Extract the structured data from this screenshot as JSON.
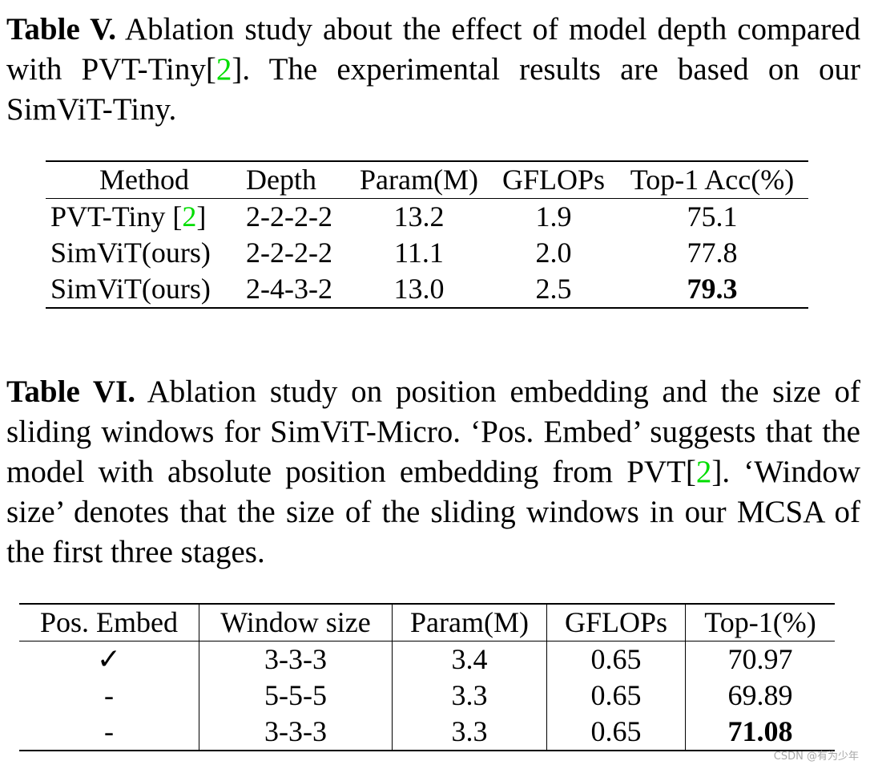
{
  "table5": {
    "caption": {
      "label": "Table V.",
      "text_1": " Ablation study about the effect of model depth compared with PVT-Tiny[",
      "ref": "2",
      "text_2": "]. The experimental results are based on our SimViT-Tiny."
    },
    "headers": [
      "Method",
      "Depth",
      "Param(M)",
      "GFLOPs",
      "Top-1 Acc(%)"
    ],
    "rows": [
      {
        "method": "PVT-Tiny [",
        "ref": "2",
        "method_end": "]",
        "depth": "2-2-2-2",
        "param": "13.2",
        "gflops": "1.9",
        "top1": "75.1"
      },
      {
        "method": "SimViT(ours)",
        "depth": "2-2-2-2",
        "param": "11.1",
        "gflops": "2.0",
        "top1": "77.8"
      },
      {
        "method": "SimViT(ours)",
        "depth": "2-4-3-2",
        "param": "13.0",
        "gflops": "2.5",
        "top1": "79.3"
      }
    ]
  },
  "table6": {
    "caption": {
      "label": "Table VI.",
      "text_1": " Ablation study on position embedding and the size of sliding windows for SimViT-Micro. ‘Pos. Embed’ suggests that the model with absolute position embedding from PVT[",
      "ref": "2",
      "text_2": "]. ‘Window size’ denotes that the size of the sliding windows in our MCSA of the first three stages."
    },
    "headers": [
      "Pos. Embed",
      "Window size",
      "Param(M)",
      "GFLOPs",
      "Top-1(%)"
    ],
    "rows": [
      {
        "pos": "✓",
        "window": "3-3-3",
        "param": "3.4",
        "gflops": "0.65",
        "top1": "70.97"
      },
      {
        "pos": "-",
        "window": "5-5-5",
        "param": "3.3",
        "gflops": "0.65",
        "top1": "69.89"
      },
      {
        "pos": "-",
        "window": "3-3-3",
        "param": "3.3",
        "gflops": "0.65",
        "top1": "71.08"
      }
    ]
  },
  "watermark": "CSDN @有为少年",
  "colors": {
    "reference_link": "#00dd00",
    "watermark": "#a8a8a8"
  }
}
